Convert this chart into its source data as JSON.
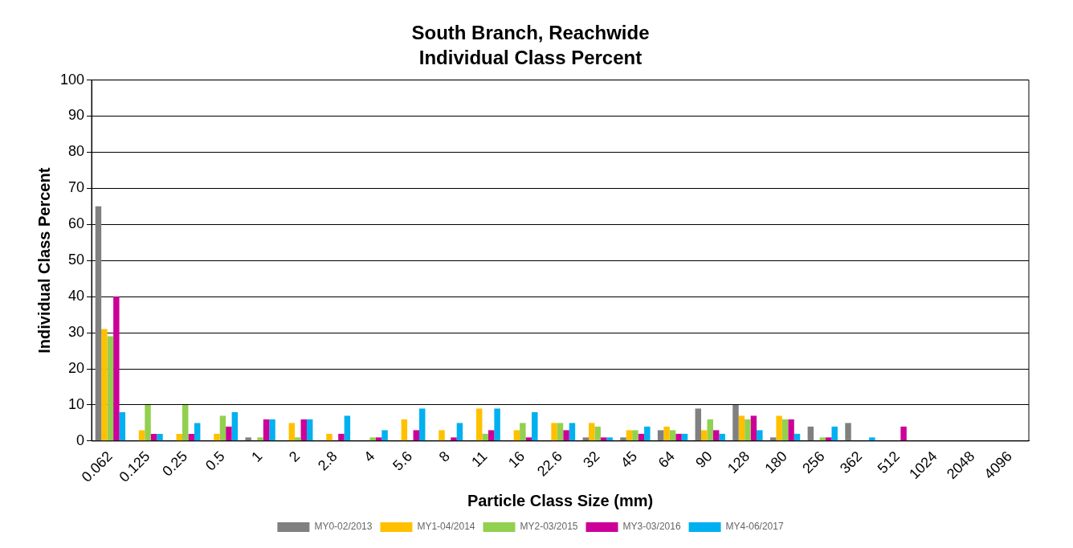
{
  "chart_data": {
    "type": "bar",
    "title": "South Branch, Reachwide",
    "subtitle": "Individual Class Percent",
    "xlabel": "Particle Class Size (mm)",
    "ylabel": "Individual Class Percent",
    "categories": [
      "0.062",
      "0.125",
      "0.25",
      "0.5",
      "1",
      "2",
      "2.8",
      "4",
      "5.6",
      "8",
      "11",
      "16",
      "22.6",
      "32",
      "45",
      "64",
      "90",
      "128",
      "180",
      "256",
      "362",
      "512",
      "1024",
      "2048",
      "4096"
    ],
    "series": [
      {
        "name": "MY0-02/2013",
        "color": "#808080",
        "values": [
          65,
          0,
          0,
          0,
          1,
          0,
          0,
          0,
          0,
          0,
          0,
          0,
          0,
          1,
          1,
          3,
          9,
          10,
          1,
          4,
          5,
          0,
          0,
          0,
          0
        ]
      },
      {
        "name": "MY1-04/2014",
        "color": "#ffc000",
        "values": [
          31,
          3,
          2,
          2,
          0,
          5,
          2,
          0,
          6,
          3,
          9,
          3,
          5,
          5,
          3,
          4,
          3,
          7,
          7,
          0,
          0,
          0,
          0,
          0,
          0
        ]
      },
      {
        "name": "MY2-03/2015",
        "color": "#92d050",
        "values": [
          29,
          10,
          10,
          7,
          1,
          1,
          0,
          1,
          0,
          0,
          2,
          5,
          5,
          4,
          3,
          3,
          6,
          6,
          6,
          1,
          0,
          0,
          0,
          0,
          0
        ]
      },
      {
        "name": "MY3-03/2016",
        "color": "#cc0099",
        "values": [
          40,
          2,
          2,
          4,
          6,
          6,
          2,
          1,
          3,
          1,
          3,
          1,
          3,
          1,
          2,
          2,
          3,
          7,
          6,
          1,
          0,
          4,
          0,
          0,
          0
        ]
      },
      {
        "name": "MY4-06/2017",
        "color": "#00b0f0",
        "values": [
          8,
          2,
          5,
          8,
          6,
          6,
          7,
          3,
          9,
          5,
          9,
          8,
          5,
          1,
          4,
          2,
          2,
          3,
          2,
          4,
          1,
          0,
          0,
          0,
          0
        ]
      }
    ],
    "ylim": [
      0,
      100
    ],
    "yticks": [
      0,
      10,
      20,
      30,
      40,
      50,
      60,
      70,
      80,
      90,
      100
    ],
    "grid": "y",
    "legend": "bottom"
  }
}
